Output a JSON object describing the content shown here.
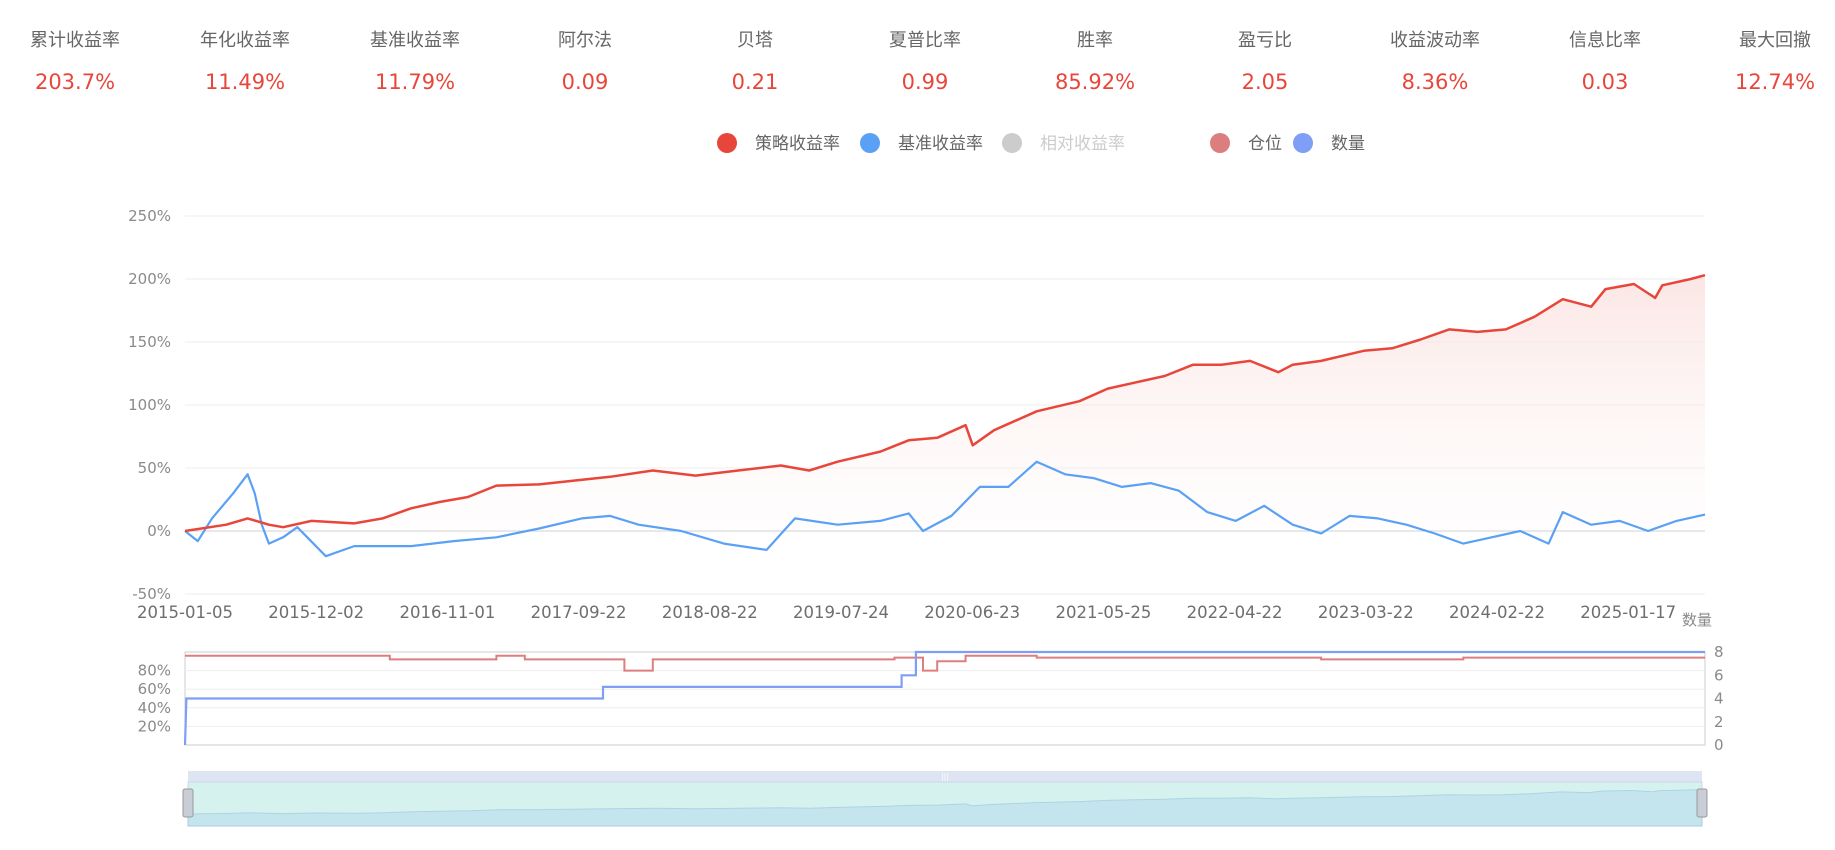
{
  "stats": [
    {
      "label": "累计收益率",
      "value": "203.7%"
    },
    {
      "label": "年化收益率",
      "value": "11.49%"
    },
    {
      "label": "基准收益率",
      "value": "11.79%"
    },
    {
      "label": "阿尔法",
      "value": "0.09"
    },
    {
      "label": "贝塔",
      "value": "0.21"
    },
    {
      "label": "夏普比率",
      "value": "0.99"
    },
    {
      "label": "胜率",
      "value": "85.92%"
    },
    {
      "label": "盈亏比",
      "value": "2.05"
    },
    {
      "label": "收益波动率",
      "value": "8.36%"
    },
    {
      "label": "信息比率",
      "value": "0.03"
    },
    {
      "label": "最大回撤",
      "value": "12.74%"
    }
  ],
  "legend": [
    {
      "name": "策略收益率",
      "color": "#e8463a",
      "active": true
    },
    {
      "name": "基准收益率",
      "color": "#5aa1f5",
      "active": true
    },
    {
      "name": "相对收益率",
      "color": "#cccccc",
      "active": false
    },
    {
      "name": "仓位",
      "color": "#dd7e7e",
      "active": true
    },
    {
      "name": "数量",
      "color": "#7f9ef5",
      "active": true
    }
  ],
  "chart_data": [
    {
      "type": "line",
      "x_ticks": [
        "2015-01-05",
        "2015-12-02",
        "2016-11-01",
        "2017-09-22",
        "2018-08-22",
        "2019-07-24",
        "2020-06-23",
        "2021-05-25",
        "2022-04-22",
        "2023-03-22",
        "2024-02-22",
        "2025-01-17"
      ],
      "y_ticks": [
        "250%",
        "200%",
        "150%",
        "100%",
        "50%",
        "0%",
        "-50%"
      ],
      "ylim": [
        -50,
        250
      ],
      "x_range": [
        2015.01,
        2025.7
      ],
      "series": [
        {
          "name": "策略收益率",
          "color": "#e8463a",
          "points": [
            [
              2015.01,
              0
            ],
            [
              2015.3,
              5
            ],
            [
              2015.45,
              10
            ],
            [
              2015.6,
              5
            ],
            [
              2015.7,
              3
            ],
            [
              2015.9,
              8
            ],
            [
              2016.2,
              6
            ],
            [
              2016.4,
              10
            ],
            [
              2016.6,
              18
            ],
            [
              2016.8,
              23
            ],
            [
              2017.0,
              27
            ],
            [
              2017.2,
              36
            ],
            [
              2017.5,
              37
            ],
            [
              2018.0,
              43
            ],
            [
              2018.3,
              48
            ],
            [
              2018.6,
              44
            ],
            [
              2018.9,
              48
            ],
            [
              2019.2,
              52
            ],
            [
              2019.4,
              48
            ],
            [
              2019.6,
              55
            ],
            [
              2019.9,
              63
            ],
            [
              2020.1,
              72
            ],
            [
              2020.3,
              74
            ],
            [
              2020.5,
              84
            ],
            [
              2020.55,
              68
            ],
            [
              2020.7,
              80
            ],
            [
              2021.0,
              95
            ],
            [
              2021.3,
              103
            ],
            [
              2021.5,
              113
            ],
            [
              2021.7,
              118
            ],
            [
              2021.9,
              123
            ],
            [
              2022.1,
              132
            ],
            [
              2022.3,
              132
            ],
            [
              2022.5,
              135
            ],
            [
              2022.7,
              126
            ],
            [
              2022.8,
              132
            ],
            [
              2023.0,
              135
            ],
            [
              2023.3,
              143
            ],
            [
              2023.5,
              145
            ],
            [
              2023.7,
              152
            ],
            [
              2023.9,
              160
            ],
            [
              2024.1,
              158
            ],
            [
              2024.3,
              160
            ],
            [
              2024.5,
              170
            ],
            [
              2024.7,
              184
            ],
            [
              2024.9,
              178
            ],
            [
              2025.0,
              192
            ],
            [
              2025.2,
              196
            ],
            [
              2025.35,
              185
            ],
            [
              2025.4,
              195
            ],
            [
              2025.6,
              200
            ],
            [
              2025.7,
              203
            ]
          ]
        },
        {
          "name": "基准收益率",
          "color": "#5aa1f5",
          "points": [
            [
              2015.01,
              0
            ],
            [
              2015.1,
              -8
            ],
            [
              2015.2,
              10
            ],
            [
              2015.35,
              30
            ],
            [
              2015.45,
              45
            ],
            [
              2015.5,
              30
            ],
            [
              2015.55,
              5
            ],
            [
              2015.6,
              -10
            ],
            [
              2015.7,
              -5
            ],
            [
              2015.8,
              3
            ],
            [
              2016.0,
              -20
            ],
            [
              2016.2,
              -12
            ],
            [
              2016.6,
              -12
            ],
            [
              2016.9,
              -8
            ],
            [
              2017.2,
              -5
            ],
            [
              2017.5,
              2
            ],
            [
              2017.8,
              10
            ],
            [
              2018.0,
              12
            ],
            [
              2018.2,
              5
            ],
            [
              2018.5,
              0
            ],
            [
              2018.8,
              -10
            ],
            [
              2019.1,
              -15
            ],
            [
              2019.3,
              10
            ],
            [
              2019.6,
              5
            ],
            [
              2019.9,
              8
            ],
            [
              2020.1,
              14
            ],
            [
              2020.2,
              0
            ],
            [
              2020.4,
              12
            ],
            [
              2020.6,
              35
            ],
            [
              2020.8,
              35
            ],
            [
              2021.0,
              55
            ],
            [
              2021.2,
              45
            ],
            [
              2021.4,
              42
            ],
            [
              2021.6,
              35
            ],
            [
              2021.8,
              38
            ],
            [
              2022.0,
              32
            ],
            [
              2022.2,
              15
            ],
            [
              2022.4,
              8
            ],
            [
              2022.6,
              20
            ],
            [
              2022.8,
              5
            ],
            [
              2023.0,
              -2
            ],
            [
              2023.2,
              12
            ],
            [
              2023.4,
              10
            ],
            [
              2023.6,
              5
            ],
            [
              2023.8,
              -2
            ],
            [
              2024.0,
              -10
            ],
            [
              2024.2,
              -5
            ],
            [
              2024.4,
              0
            ],
            [
              2024.6,
              -10
            ],
            [
              2024.7,
              15
            ],
            [
              2024.9,
              5
            ],
            [
              2025.1,
              8
            ],
            [
              2025.3,
              0
            ],
            [
              2025.5,
              8
            ],
            [
              2025.7,
              13
            ]
          ]
        }
      ]
    },
    {
      "type": "line",
      "left_y_ticks": [
        "80%",
        "60%",
        "40%",
        "20%"
      ],
      "right_axis_name": "数量",
      "right_y_ticks": [
        "8",
        "6",
        "4",
        "2",
        "0"
      ],
      "right_ylim": [
        0,
        8
      ],
      "series": [
        {
          "name": "仓位",
          "color": "#dd7e7e",
          "axis": "left",
          "points": [
            [
              2015.01,
              96
            ],
            [
              2016.4,
              96
            ],
            [
              2016.45,
              92
            ],
            [
              2017.0,
              92
            ],
            [
              2017.2,
              96
            ],
            [
              2017.4,
              92
            ],
            [
              2018.0,
              92
            ],
            [
              2018.1,
              80
            ],
            [
              2018.3,
              92
            ],
            [
              2020.0,
              94
            ],
            [
              2020.2,
              80
            ],
            [
              2020.3,
              90
            ],
            [
              2020.5,
              96
            ],
            [
              2021.0,
              94
            ],
            [
              2022.0,
              94
            ],
            [
              2023.0,
              92
            ],
            [
              2024.0,
              94
            ],
            [
              2025.0,
              94
            ],
            [
              2025.7,
              94
            ]
          ]
        },
        {
          "name": "数量",
          "color": "#7f9ef5",
          "axis": "right",
          "points": [
            [
              2015.01,
              0
            ],
            [
              2015.02,
              4
            ],
            [
              2017.95,
              4
            ],
            [
              2017.95,
              5
            ],
            [
              2020.05,
              5
            ],
            [
              2020.05,
              6
            ],
            [
              2020.15,
              6
            ],
            [
              2020.15,
              8
            ],
            [
              2025.7,
              8
            ]
          ]
        }
      ]
    }
  ]
}
